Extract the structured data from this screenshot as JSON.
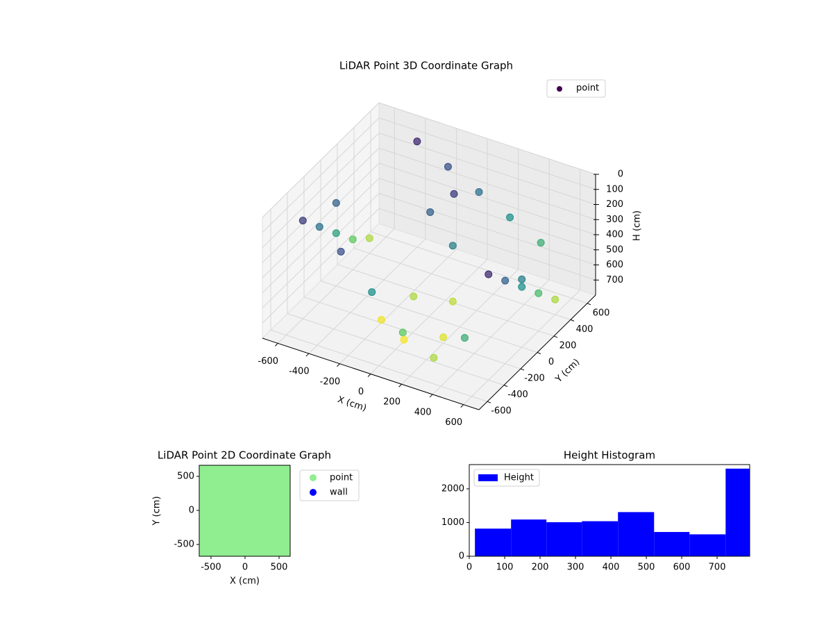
{
  "chart_data": [
    {
      "type": "scatter3d",
      "title": "LiDAR Point 3D Coordinate Graph",
      "x_label": "X (cm)",
      "y_label": "Y (cm)",
      "z_label": "H (cm)",
      "xlim": [
        -700,
        700
      ],
      "ylim": [
        -700,
        700
      ],
      "zlim": [
        0,
        800
      ],
      "z_inverted": true,
      "xticks": [
        -600,
        -400,
        -200,
        0,
        200,
        400,
        600
      ],
      "yticks": [
        -600,
        -400,
        -200,
        0,
        200,
        400,
        600
      ],
      "zticks": [
        0,
        100,
        200,
        300,
        400,
        500,
        600,
        700
      ],
      "colormap": "viridis",
      "legend": "upper right",
      "grid": true,
      "series": [
        {
          "name": "point",
          "color": "#440154",
          "x": [
            -600,
            -600,
            -600,
            -600,
            -600,
            -600,
            600,
            600,
            600,
            600,
            600,
            600,
            -400,
            -200,
            0,
            200,
            400,
            -300,
            -100,
            100,
            300,
            500,
            -200,
            0,
            200,
            -100,
            100,
            0,
            -100,
            100
          ],
          "y": [
            -400,
            -200,
            0,
            200,
            400,
            0,
            -400,
            -200,
            0,
            200,
            400,
            0,
            600,
            600,
            600,
            600,
            600,
            -500,
            -500,
            -500,
            -500,
            -500,
            -200,
            -300,
            -200,
            0,
            100,
            300,
            200,
            100
          ],
          "z": [
            150,
            300,
            450,
            600,
            700,
            250,
            100,
            250,
            400,
            550,
            700,
            350,
            100,
            200,
            300,
            400,
            500,
            200,
            400,
            600,
            700,
            500,
            780,
            790,
            760,
            700,
            720,
            150,
            250,
            350
          ]
        }
      ]
    },
    {
      "type": "scatter",
      "title": "LiDAR Point 2D Coordinate Graph",
      "x_label": "X (cm)",
      "y_label": "Y (cm)",
      "xlim": [
        -673,
        663
      ],
      "ylim": [
        -673,
        663
      ],
      "xticks": [
        -500,
        0,
        500
      ],
      "yticks": [
        -500,
        0,
        500
      ],
      "legend": "outside upper right",
      "series": [
        {
          "name": "point",
          "color": "#90ee90",
          "x": [
            -550,
            -275,
            0,
            275,
            550,
            -550,
            -275,
            0,
            275,
            550,
            -550,
            -275,
            0,
            275,
            550,
            -550,
            -275,
            0,
            275,
            550,
            -550,
            -275,
            0,
            275,
            550,
            250,
            620
          ],
          "y": [
            -550,
            -550,
            -550,
            -550,
            -550,
            -275,
            -275,
            -275,
            -275,
            -275,
            0,
            0,
            0,
            0,
            0,
            275,
            275,
            275,
            275,
            275,
            550,
            550,
            550,
            550,
            550,
            620,
            150
          ]
        },
        {
          "name": "wall",
          "color": "#0000ff",
          "x": [],
          "y": []
        }
      ]
    },
    {
      "type": "histogram",
      "title": "Height Histogram",
      "label": "Height",
      "color": "#0000ff",
      "bins": [
        16,
        118,
        218,
        318,
        420,
        522,
        622,
        724,
        792
      ],
      "counts": [
        820,
        1090,
        1010,
        1040,
        1310,
        720,
        650,
        2600
      ],
      "xlim": [
        0,
        792
      ],
      "ylim": [
        0,
        2720
      ],
      "xticks": [
        0,
        100,
        200,
        300,
        400,
        500,
        600,
        700
      ],
      "yticks": [
        0,
        1000,
        2000
      ],
      "legend": "upper left"
    }
  ]
}
